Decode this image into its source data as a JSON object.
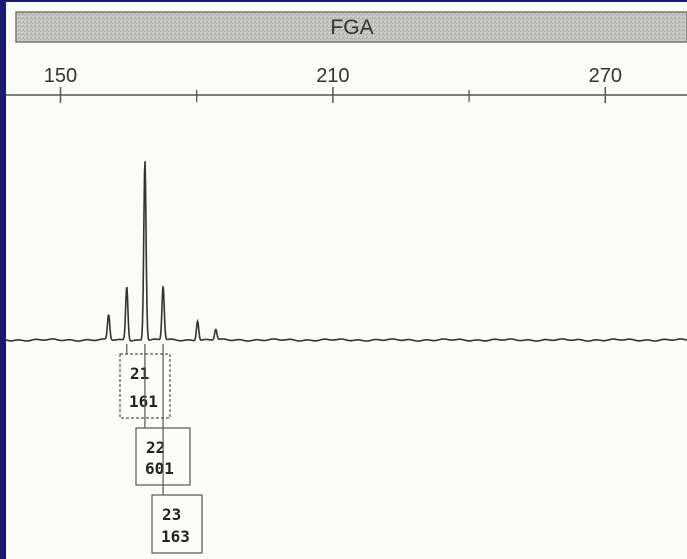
{
  "colors": {
    "background": "#1a1a6e",
    "panel": "#fbfbf8",
    "header_bar": "#c4c4c0",
    "trace": "#333333"
  },
  "chart_data": {
    "type": "line",
    "title": "FGA",
    "xlabel": "",
    "ylabel": "",
    "xlim": [
      138,
      288
    ],
    "xticks_major": [
      150,
      210,
      270
    ],
    "xticks_minor": [
      180,
      240
    ],
    "grid": false,
    "peaks": [
      {
        "x": 160.6,
        "height": 0.14
      },
      {
        "x": 164.6,
        "height": 0.3
      },
      {
        "x": 168.6,
        "height": 1.0
      },
      {
        "x": 172.6,
        "height": 0.3
      },
      {
        "x": 180.2,
        "height": 0.11
      },
      {
        "x": 184.2,
        "height": 0.06
      }
    ],
    "allele_calls": [
      {
        "allele": "21",
        "value": "161",
        "x": 164.6
      },
      {
        "allele": "22",
        "value": "601",
        "x": 168.6
      },
      {
        "allele": "23",
        "value": "163",
        "x": 172.6
      }
    ]
  }
}
